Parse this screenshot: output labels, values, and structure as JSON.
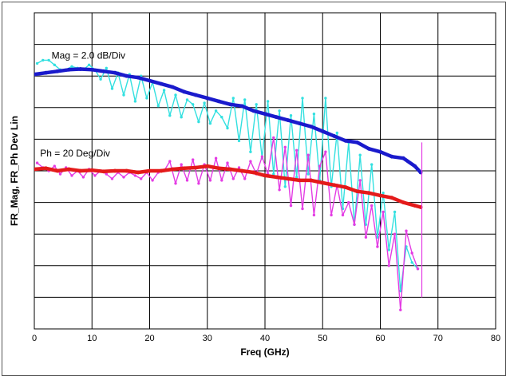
{
  "chart_data": {
    "type": "line",
    "title": "",
    "xlabel": "Freq (GHz)",
    "ylabel": "FR_Mag, FR_Ph Dev Lin",
    "xlim": [
      0,
      80
    ],
    "x_ticks": [
      0,
      10,
      20,
      30,
      40,
      50,
      60,
      70,
      80
    ],
    "y_divisions": 10,
    "ylim": [
      0,
      10
    ],
    "grid": true,
    "legend": "none",
    "colors": {
      "mag_smooth": "#1a1acc",
      "mag_raw": "#33e0e0",
      "phase_smooth": "#e41a1a",
      "phase_raw": "#e43ce4"
    },
    "annotations": [
      {
        "text": "Mag = 2.0 dB/Div",
        "x": 3.0,
        "y": 8.55
      },
      {
        "text": "Ph = 20 Deg/Div",
        "x": 1.0,
        "y": 5.45
      }
    ],
    "marker_line": {
      "x": 67.2,
      "y_from": 1.0,
      "y_to": 5.9,
      "color": "#e43ce4"
    },
    "series": [
      {
        "key": "mag_smooth",
        "style": "line",
        "x": [
          0,
          2,
          4,
          6,
          8,
          10,
          12,
          14,
          16,
          18,
          20,
          22,
          24,
          26,
          28,
          30,
          32,
          34,
          36,
          38,
          40,
          42,
          44,
          46,
          48,
          50,
          52,
          54,
          56,
          58,
          60,
          62,
          64,
          66,
          67
        ],
        "values": [
          8.05,
          8.1,
          8.15,
          8.2,
          8.22,
          8.2,
          8.15,
          8.1,
          8.0,
          7.95,
          7.85,
          7.75,
          7.65,
          7.5,
          7.4,
          7.3,
          7.2,
          7.1,
          7.05,
          6.9,
          6.8,
          6.7,
          6.6,
          6.5,
          6.4,
          6.25,
          6.1,
          5.95,
          5.9,
          5.7,
          5.6,
          5.45,
          5.4,
          5.15,
          4.95
        ]
      },
      {
        "key": "mag_raw",
        "style": "markers",
        "x": [
          0.5,
          1.5,
          2.5,
          3.5,
          4.5,
          5.5,
          6.5,
          7.5,
          8.5,
          9.5,
          10.5,
          11.5,
          12.5,
          13.5,
          14.5,
          15.5,
          16.5,
          17.5,
          18.5,
          19.5,
          20.5,
          21.5,
          22.5,
          23.5,
          24.5,
          25.5,
          26.5,
          27.5,
          28.5,
          29.5,
          30.5,
          31.5,
          32.5,
          33.5,
          34.5,
          35.5,
          36.5,
          37.5,
          38.5,
          39.5,
          40.5,
          41.5,
          42.5,
          43.5,
          44.5,
          45.5,
          46.5,
          47.5,
          48.5,
          49.5,
          50.5,
          51.5,
          52.5,
          53.5,
          54.5,
          55.5,
          56.5,
          57.5,
          58.5,
          59.5,
          60.5,
          61.5,
          62.5,
          63.5,
          64.5,
          65.5,
          66.5
        ],
        "values": [
          8.4,
          8.5,
          8.5,
          8.35,
          8.2,
          8.2,
          8.3,
          8.25,
          8.2,
          8.35,
          8.2,
          7.9,
          8.25,
          7.6,
          8.1,
          7.4,
          8.05,
          7.2,
          8.0,
          7.3,
          7.8,
          7.05,
          7.55,
          6.75,
          7.4,
          6.7,
          7.25,
          7.1,
          6.55,
          7.15,
          6.5,
          6.9,
          6.7,
          6.35,
          7.3,
          5.95,
          7.25,
          5.6,
          7.1,
          5.4,
          7.2,
          4.9,
          6.9,
          4.5,
          6.75,
          4.8,
          7.3,
          4.9,
          6.8,
          4.7,
          7.3,
          4.5,
          6.2,
          3.8,
          5.9,
          3.3,
          5.5,
          3.3,
          5.2,
          2.9,
          4.3,
          2.5,
          3.7,
          1.2,
          2.6,
          2.1,
          1.9
        ]
      },
      {
        "key": "phase_smooth",
        "style": "markers",
        "x": [
          0,
          2,
          4,
          6,
          8,
          10,
          12,
          14,
          16,
          18,
          20,
          22,
          24,
          26,
          28,
          30,
          32,
          34,
          36,
          38,
          40,
          42,
          44,
          46,
          48,
          50,
          52,
          54,
          56,
          58,
          60,
          62,
          64,
          66,
          67
        ],
        "values": [
          5.05,
          5.08,
          5.0,
          5.05,
          5.0,
          5.02,
          4.98,
          5.0,
          5.0,
          4.95,
          5.0,
          5.0,
          5.05,
          5.08,
          5.1,
          5.15,
          5.08,
          5.05,
          5.0,
          4.95,
          4.85,
          4.8,
          4.75,
          4.7,
          4.7,
          4.62,
          4.55,
          4.48,
          4.35,
          4.3,
          4.22,
          4.15,
          4.0,
          3.9,
          3.85
        ]
      },
      {
        "key": "phase_raw",
        "style": "markers",
        "x": [
          0.5,
          1.5,
          2.5,
          3.5,
          4.5,
          5.5,
          6.5,
          7.5,
          8.5,
          9.5,
          10.5,
          11.5,
          12.5,
          13.5,
          14.5,
          15.5,
          16.5,
          17.5,
          18.5,
          19.5,
          20.5,
          21.5,
          22.5,
          23.5,
          24.5,
          25.5,
          26.5,
          27.5,
          28.5,
          29.5,
          30.5,
          31.5,
          32.5,
          33.5,
          34.5,
          35.5,
          36.5,
          37.5,
          38.5,
          39.5,
          40.5,
          41.5,
          42.5,
          43.5,
          44.5,
          45.5,
          46.5,
          47.5,
          48.5,
          49.5,
          50.5,
          51.5,
          52.5,
          53.5,
          54.5,
          55.5,
          56.5,
          57.5,
          58.5,
          59.5,
          60.5,
          61.5,
          62.5,
          63.5,
          64.5,
          65.5,
          66.5
        ],
        "values": [
          5.25,
          5.1,
          5.0,
          5.15,
          4.9,
          5.1,
          4.85,
          5.0,
          4.8,
          5.05,
          4.85,
          5.0,
          4.9,
          4.75,
          4.95,
          4.8,
          4.95,
          4.85,
          4.75,
          4.95,
          4.7,
          4.95,
          5.0,
          5.3,
          4.6,
          5.2,
          4.7,
          5.35,
          4.6,
          5.2,
          4.7,
          5.4,
          4.7,
          5.25,
          4.75,
          5.1,
          4.75,
          5.3,
          4.9,
          5.45,
          4.9,
          6.05,
          4.4,
          5.75,
          3.9,
          5.65,
          3.8,
          5.5,
          3.6,
          5.15,
          5.6,
          3.6,
          4.55,
          3.6,
          4.0,
          3.3,
          4.7,
          2.9,
          3.9,
          2.6,
          3.7,
          2.0,
          3.0,
          0.6,
          3.1,
          2.4,
          1.9
        ]
      }
    ]
  }
}
